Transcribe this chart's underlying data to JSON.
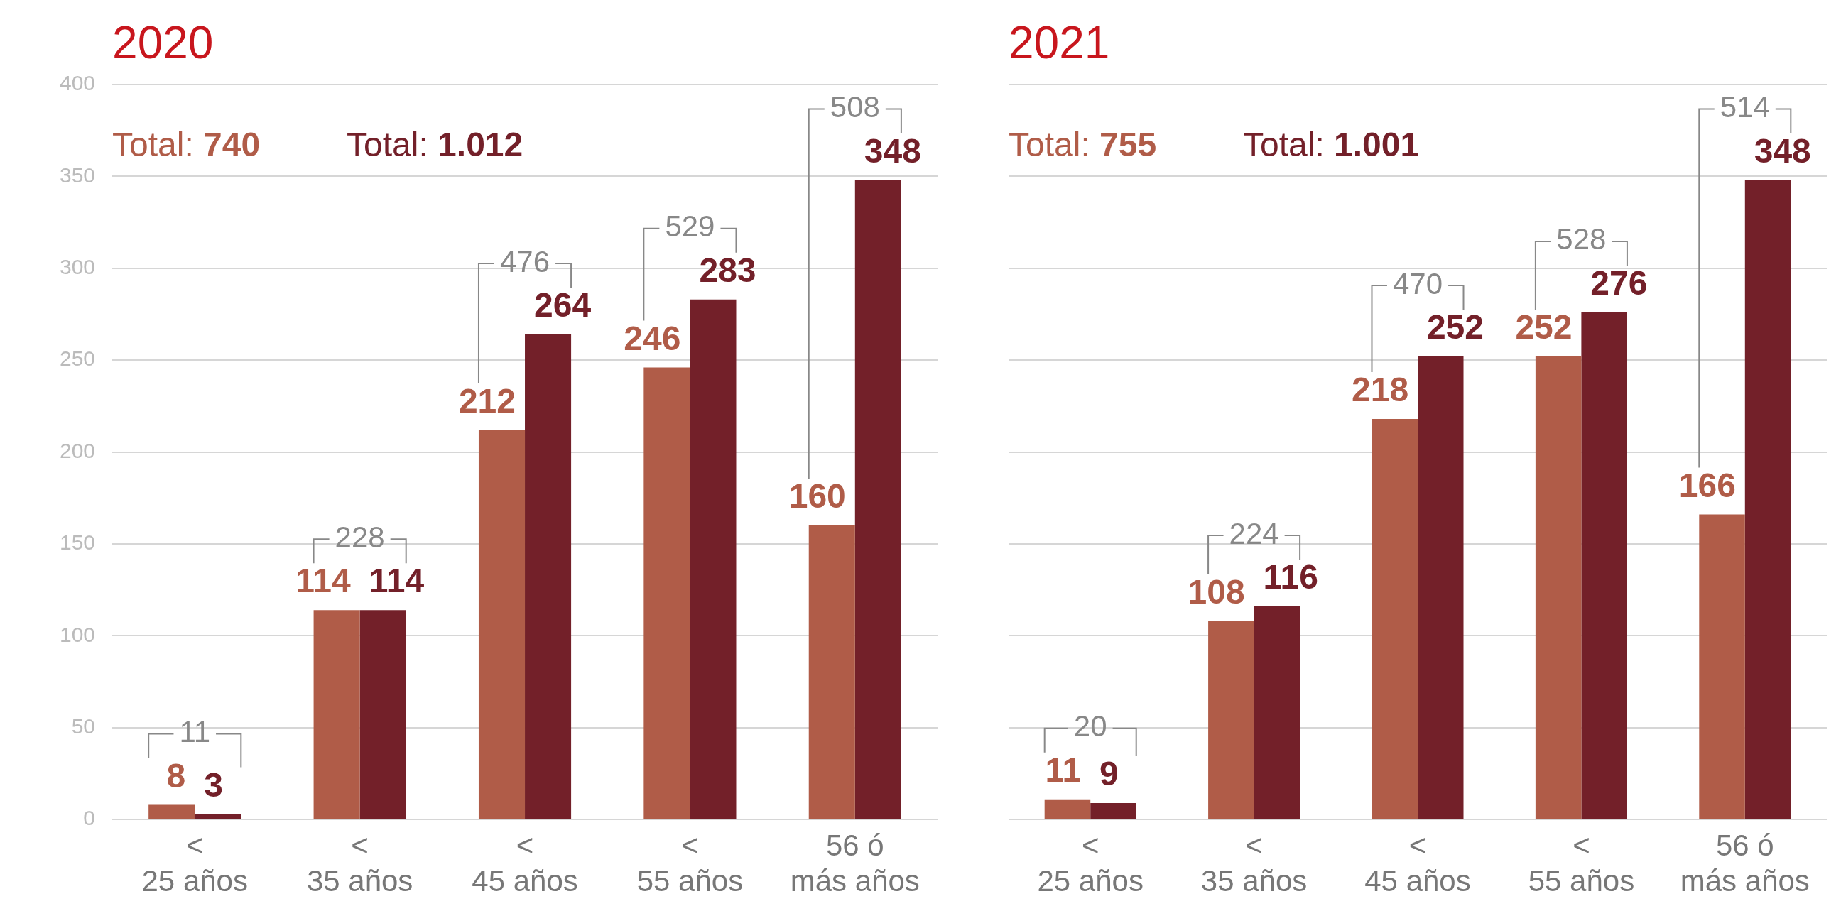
{
  "chart_data": [
    {
      "type": "bar",
      "title": "2020",
      "categories": [
        "<\n25 años",
        "<\n35 años",
        "<\n45 años",
        "<\n55 años",
        "56 ó\nmás años"
      ],
      "series": [
        {
          "color": "#b05c48",
          "values": [
            8,
            114,
            212,
            246,
            160
          ]
        },
        {
          "color": "#732029",
          "values": [
            3,
            114,
            264,
            283,
            348
          ]
        }
      ],
      "ylim": [
        0,
        400
      ],
      "yticks": [
        0,
        50,
        100,
        150,
        200,
        250,
        300,
        350,
        400
      ],
      "grid": "y",
      "data_labels": true,
      "annotations": [
        "Total: 740",
        "Total: 1.012",
        "11",
        "228",
        "476",
        "529",
        "508"
      ]
    },
    {
      "type": "bar",
      "title": "2021",
      "categories": [
        "<\n25 años",
        "<\n35 años",
        "<\n45 años",
        "<\n55 años",
        "56 ó\nmás años"
      ],
      "series": [
        {
          "color": "#b05c48",
          "values": [
            11,
            108,
            218,
            252,
            166
          ]
        },
        {
          "color": "#732029",
          "values": [
            9,
            116,
            252,
            276,
            348
          ]
        }
      ],
      "ylim": [
        0,
        400
      ],
      "yticks": [
        0,
        50,
        100,
        150,
        200,
        250,
        300,
        350,
        400
      ],
      "grid": "y",
      "data_labels": true,
      "tick_labels": "x",
      "annotations": [
        "Total: 755",
        "Total: 1.001",
        "20",
        "224",
        "470",
        "528",
        "514"
      ]
    }
  ]
}
